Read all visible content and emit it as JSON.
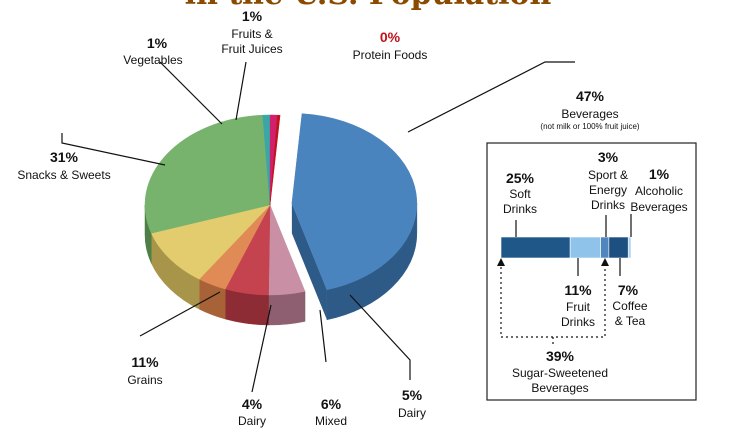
{
  "chart_data": {
    "type": "pie",
    "title": "in the U.S. Population",
    "slices": [
      {
        "label": "Beverages",
        "value": 47,
        "pct_text": "47%",
        "note": "(not milk or 100% fruit juice)",
        "color": "#4a84bf",
        "side": "#2e5a87"
      },
      {
        "label": "Dairy",
        "value": 5,
        "pct_text": "5%",
        "color": "#c98fa4",
        "side": "#8d5f70"
      },
      {
        "label": "Mixed",
        "value": 6,
        "pct_text": "6%",
        "color": "#c4434f",
        "side": "#8e2c35"
      },
      {
        "label": "Dairy",
        "value": 4,
        "pct_text": "4%",
        "color": "#e08a55",
        "side": "#a86237"
      },
      {
        "label": "Grains",
        "value": 11,
        "pct_text": "11%",
        "color": "#e3cc6e",
        "side": "#a8954a"
      },
      {
        "label": "Snacks & Sweets",
        "value": 31,
        "pct_text": "31%",
        "color": "#77b36c",
        "side": "#4e7f46"
      },
      {
        "label": "Vegetables",
        "value": 1,
        "pct_text": "1%",
        "color": "#3aa6a8",
        "side": "#257a7b"
      },
      {
        "label": "Fruits & Fruit Juices",
        "value": 1,
        "pct_text": "1%",
        "color": "#d11f6b",
        "side": "#961249"
      },
      {
        "label": "Protein Foods",
        "value": 0,
        "pct_text": "0%",
        "color": "#c0121b",
        "side": "#8a0d14"
      }
    ],
    "beverage_breakdown": {
      "items": [
        {
          "label": "Soft Drinks",
          "value": 25,
          "pct_text": "25%",
          "color": "#1f5788"
        },
        {
          "label": "Fruit Drinks",
          "value": 11,
          "pct_text": "11%",
          "color": "#8fc3ea"
        },
        {
          "label": "Sport & Energy Drinks",
          "value": 3,
          "pct_text": "3%",
          "color": "#4f86bd"
        },
        {
          "label": "Coffee & Tea",
          "value": 7,
          "pct_text": "7%",
          "color": "#1d4f80"
        },
        {
          "label": "Alcoholic Beverages",
          "value": 1,
          "pct_text": "1%",
          "color": "#a9d4f0"
        }
      ],
      "group": {
        "label": "Sugar-Sweetened Beverages",
        "value": 39,
        "pct_text": "39%"
      }
    }
  },
  "labels": {
    "protein_pct": "0%",
    "protein_name": "Protein Foods",
    "fruit_pct": "1%",
    "fruit_line1": "Fruits &",
    "fruit_line2": "Fruit Juices",
    "veg_pct": "1%",
    "veg_name": "Vegetables",
    "snacks_pct": "31%",
    "snacks_name": "Snacks & Sweets",
    "grains_pct": "11%",
    "grains_name": "Grains",
    "dairy4_pct": "4%",
    "dairy4_name": "Dairy",
    "mixed_pct": "6%",
    "mixed_name": "Mixed",
    "dairy5_pct": "5%",
    "dairy5_name": "Dairy",
    "bev_pct": "47%",
    "bev_name": "Beverages",
    "bev_note": "(not milk or 100% fruit juice)",
    "soft_pct": "25%",
    "soft_line1": "Soft",
    "soft_line2": "Drinks",
    "sport_pct": "3%",
    "sport_line1": "Sport &",
    "sport_line2": "Energy",
    "sport_line3": "Drinks",
    "alc_pct": "1%",
    "alc_line1": "Alcoholic",
    "alc_line2": "Beverages",
    "fruitdr_pct": "11%",
    "fruitdr_line1": "Fruit",
    "fruitdr_line2": "Drinks",
    "coffee_pct": "7%",
    "coffee_line1": "Coffee",
    "coffee_line2": "& Tea",
    "ssb_pct": "39%",
    "ssb_line1": "Sugar-Sweetened",
    "ssb_line2": "Beverages"
  }
}
